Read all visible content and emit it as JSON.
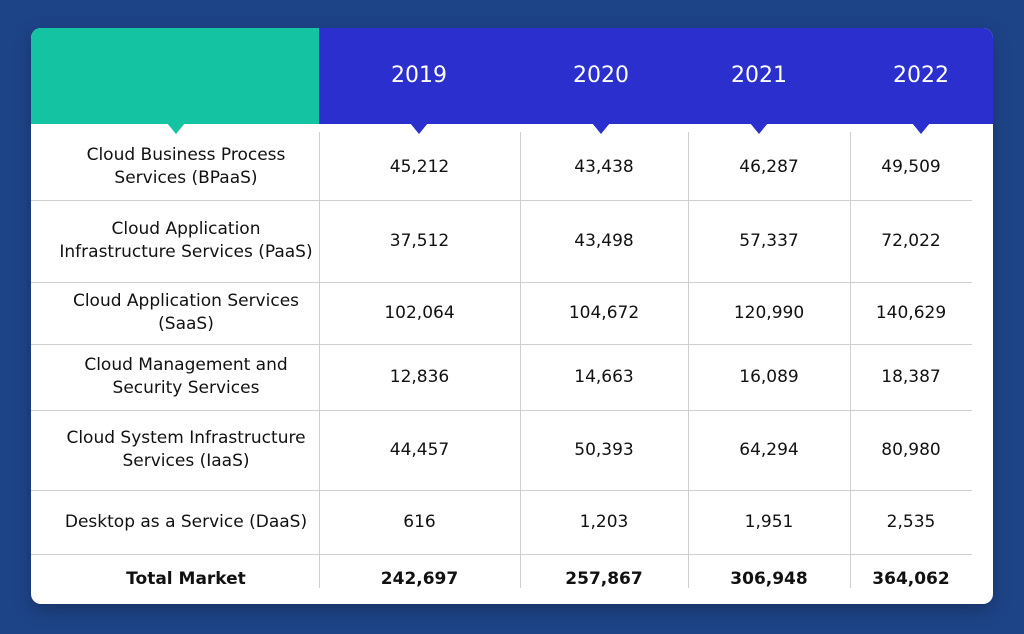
{
  "chart_data": {
    "type": "table",
    "columns": [
      "2019",
      "2020",
      "2021",
      "2022"
    ],
    "rows": [
      {
        "label": "Cloud Business Process Services (BPaaS)",
        "values": [
          "45,212",
          "43,438",
          "46,287",
          "49,509"
        ]
      },
      {
        "label": "Cloud Application Infrastructure Services (PaaS)",
        "values": [
          "37,512",
          "43,498",
          "57,337",
          "72,022"
        ]
      },
      {
        "label": "Cloud Application Services (SaaS)",
        "values": [
          "102,064",
          "104,672",
          "120,990",
          "140,629"
        ]
      },
      {
        "label": "Cloud Management and Security Services",
        "values": [
          "12,836",
          "14,663",
          "16,089",
          "18,387"
        ]
      },
      {
        "label": "Cloud System Infrastructure Services (IaaS)",
        "values": [
          "44,457",
          "50,393",
          "64,294",
          "80,980"
        ]
      },
      {
        "label": "Desktop as a Service (DaaS)",
        "values": [
          "616",
          "1,203",
          "1,951",
          "2,535"
        ]
      }
    ],
    "total": {
      "label": "Total Market",
      "values": [
        "242,697",
        "257,867",
        "306,948",
        "364,062"
      ]
    }
  },
  "colors": {
    "background": "#1e4488",
    "header_left": "#13c3a2",
    "header_right": "#2b2fce"
  }
}
